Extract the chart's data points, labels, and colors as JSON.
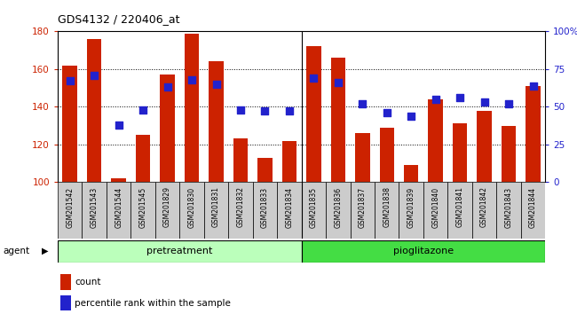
{
  "title": "GDS4132 / 220406_at",
  "samples": [
    "GSM201542",
    "GSM201543",
    "GSM201544",
    "GSM201545",
    "GSM201829",
    "GSM201830",
    "GSM201831",
    "GSM201832",
    "GSM201833",
    "GSM201834",
    "GSM201835",
    "GSM201836",
    "GSM201837",
    "GSM201838",
    "GSM201839",
    "GSM201840",
    "GSM201841",
    "GSM201842",
    "GSM201843",
    "GSM201844"
  ],
  "counts": [
    162,
    176,
    102,
    125,
    157,
    179,
    164,
    123,
    113,
    122,
    172,
    166,
    126,
    129,
    109,
    144,
    131,
    138,
    130,
    151
  ],
  "percentiles": [
    67,
    71,
    38,
    48,
    63,
    68,
    65,
    48,
    47,
    47,
    69,
    66,
    52,
    46,
    44,
    55,
    56,
    53,
    52,
    64
  ],
  "pretreatment_count": 10,
  "pioglitazone_count": 10,
  "ylim_left": [
    100,
    180
  ],
  "ylim_right": [
    0,
    100
  ],
  "yticks_left": [
    100,
    120,
    140,
    160,
    180
  ],
  "yticks_right": [
    0,
    25,
    50,
    75,
    100
  ],
  "ytick_right_labels": [
    "0",
    "25",
    "50",
    "75",
    "100%"
  ],
  "bar_color": "#cc2200",
  "dot_color": "#2222cc",
  "pretreatment_color": "#bbffbb",
  "pioglitazone_color": "#44dd44",
  "xtick_bg": "#cccccc",
  "bar_width": 0.6,
  "dot_size": 40,
  "plot_bg": "#ffffff"
}
